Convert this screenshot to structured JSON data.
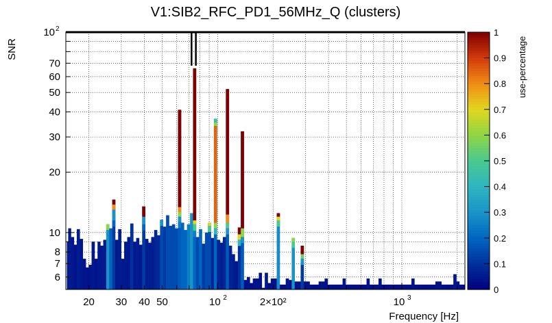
{
  "chart_data": {
    "type": "heatmap",
    "title": "V1:SIB2_RFC_PD1_56MHz_Q (clusters)",
    "xlabel": "Frequency [Hz]",
    "ylabel": "SNR",
    "zlabel": "use-percentage",
    "x_scale": "log",
    "y_scale": "log",
    "xlim": [
      15,
      2200
    ],
    "ylim": [
      5.2,
      100
    ],
    "zlim": [
      0,
      1
    ],
    "grid": true,
    "x_tick_labels": [
      {
        "value": 20,
        "label": "20"
      },
      {
        "value": 30,
        "label": "30"
      },
      {
        "value": 40,
        "label": "40"
      },
      {
        "value": 50,
        "label": "50"
      },
      {
        "value": 200,
        "label": "2×10²"
      }
    ],
    "x_decade_labels": [
      {
        "value": 100,
        "base": "10",
        "exp": "2"
      },
      {
        "value": 1000,
        "base": "10",
        "exp": "3"
      }
    ],
    "y_tick_labels": [
      {
        "value": 6,
        "label": "6"
      },
      {
        "value": 7,
        "label": "7"
      },
      {
        "value": 8,
        "label": "8"
      },
      {
        "value": 10,
        "label": "10"
      },
      {
        "value": 20,
        "label": "20"
      },
      {
        "value": 30,
        "label": "30"
      },
      {
        "value": 40,
        "label": "40"
      },
      {
        "value": 50,
        "label": "50"
      },
      {
        "value": 60,
        "label": "60"
      },
      {
        "value": 70,
        "label": "70"
      }
    ],
    "y_decade_labels": [
      {
        "value": 100,
        "base": "10",
        "exp": "2"
      }
    ],
    "z_tick_labels": [
      "0",
      "0.1",
      "0.2",
      "0.3",
      "0.4",
      "0.5",
      "0.6",
      "0.7",
      "0.8",
      "0.9",
      "1"
    ],
    "colormap": [
      "#00007f",
      "#00309c",
      "#0066c2",
      "#1a93c8",
      "#2fb5c0",
      "#49c98f",
      "#8fd544",
      "#e0d71f",
      "#f08d14",
      "#d23b0b",
      "#7f0000"
    ],
    "columns": [
      {
        "f": 15.2,
        "snr": 9.0,
        "z": 0.05
      },
      {
        "f": 15.7,
        "snr": 10.5,
        "z": 0.06
      },
      {
        "f": 16.3,
        "snr": 9.5,
        "z": 0.05
      },
      {
        "f": 16.9,
        "snr": 8.7,
        "z": 0.04
      },
      {
        "f": 17.5,
        "snr": 10.4,
        "z": 0.06
      },
      {
        "f": 18.2,
        "snr": 9.3,
        "z": 0.05
      },
      {
        "f": 18.9,
        "snr": 7.4,
        "z": 0.04
      },
      {
        "f": 19.6,
        "snr": 6.7,
        "z": 0.04
      },
      {
        "f": 20.3,
        "snr": 6.9,
        "z": 0.04
      },
      {
        "f": 21.1,
        "snr": 9.0,
        "z": 0.05
      },
      {
        "f": 21.9,
        "snr": 7.4,
        "z": 0.04
      },
      {
        "f": 22.7,
        "snr": 9.0,
        "z": 0.05
      },
      {
        "f": 23.5,
        "snr": 8.6,
        "z": 0.05
      },
      {
        "f": 24.4,
        "snr": 9.2,
        "z": 0.05
      },
      {
        "f": 25.3,
        "snr": 11.0,
        "z": 0.3,
        "cells": [
          [
            10.3,
            0.3
          ],
          [
            11.0,
            0.6
          ]
        ]
      },
      {
        "f": 26.3,
        "snr": 10.5,
        "z": 0.2
      },
      {
        "f": 27.3,
        "snr": 14.6,
        "z": 0.12,
        "cells": [
          [
            11.5,
            0.2
          ],
          [
            13.0,
            0.3
          ],
          [
            13.8,
            0.8
          ],
          [
            14.6,
            1.0
          ]
        ]
      },
      {
        "f": 28.3,
        "snr": 9.2,
        "z": 0.05
      },
      {
        "f": 29.4,
        "snr": 10.4,
        "z": 0.06
      },
      {
        "f": 30.5,
        "snr": 7.4,
        "z": 0.05
      },
      {
        "f": 31.7,
        "snr": 9.0,
        "z": 0.05
      },
      {
        "f": 32.9,
        "snr": 9.5,
        "z": 0.05
      },
      {
        "f": 34.2,
        "snr": 11.1,
        "z": 0.1
      },
      {
        "f": 35.5,
        "snr": 9.0,
        "z": 0.05
      },
      {
        "f": 36.8,
        "snr": 9.4,
        "z": 0.06
      },
      {
        "f": 38.2,
        "snr": 8.7,
        "z": 0.05
      },
      {
        "f": 39.7,
        "snr": 13.5,
        "z": 0.12,
        "cells": [
          [
            11.0,
            0.2
          ],
          [
            12.0,
            0.3
          ],
          [
            13.5,
            1.0
          ]
        ]
      },
      {
        "f": 41.2,
        "snr": 9.3,
        "z": 0.06
      },
      {
        "f": 42.8,
        "snr": 8.9,
        "z": 0.06
      },
      {
        "f": 44.4,
        "snr": 9.5,
        "z": 0.06
      },
      {
        "f": 46.1,
        "snr": 10.3,
        "z": 0.08
      },
      {
        "f": 47.8,
        "snr": 9.7,
        "z": 0.08
      },
      {
        "f": 49.6,
        "snr": 11.6,
        "z": 0.15,
        "cells": [
          [
            11.6,
            0.3
          ]
        ]
      },
      {
        "f": 51.5,
        "snr": 10.7,
        "z": 0.12
      },
      {
        "f": 53.5,
        "snr": 12.2,
        "z": 0.15
      },
      {
        "f": 55.5,
        "snr": 10.8,
        "z": 0.15
      },
      {
        "f": 57.6,
        "snr": 11.0,
        "z": 0.15
      },
      {
        "f": 59.8,
        "snr": 10.5,
        "z": 0.15
      },
      {
        "f": 62.1,
        "snr": 41.0,
        "z": 0.18,
        "cells": [
          [
            11.3,
            0.25
          ],
          [
            12.0,
            0.3
          ],
          [
            12.7,
            0.6
          ],
          [
            13.4,
            0.8
          ],
          [
            41.0,
            1.0
          ]
        ]
      },
      {
        "f": 64.5,
        "snr": 11.2,
        "z": 0.2
      },
      {
        "f": 66.9,
        "snr": 10.3,
        "z": 0.2
      },
      {
        "f": 69.5,
        "snr": 11.0,
        "z": 0.25
      },
      {
        "f": 72.2,
        "snr": 12.5,
        "z": 0.3
      },
      {
        "f": 74.9,
        "snr": 66.0,
        "z": 0.2,
        "cells": [
          [
            10.2,
            0.25
          ],
          [
            11.0,
            0.5
          ],
          [
            11.5,
            0.7
          ],
          [
            66.0,
            1.0
          ]
        ]
      },
      {
        "f": 77.8,
        "snr": 9.5,
        "z": 0.15
      },
      {
        "f": 80.7,
        "snr": 10.4,
        "z": 0.2
      },
      {
        "f": 83.8,
        "snr": 8.8,
        "z": 0.12
      },
      {
        "f": 87.0,
        "snr": 10.0,
        "z": 0.15
      },
      {
        "f": 90.3,
        "snr": 11.2,
        "z": 0.15,
        "cells": [
          [
            10.8,
            0.5
          ],
          [
            11.2,
            0.7
          ]
        ]
      },
      {
        "f": 93.7,
        "snr": 9.4,
        "z": 0.08
      },
      {
        "f": 97.3,
        "snr": 37.0,
        "z": 0.2,
        "cells": [
          [
            10.5,
            0.4
          ],
          [
            11.2,
            0.6
          ],
          [
            34.0,
            0.85
          ],
          [
            35.5,
            0.6
          ],
          [
            37.0,
            0.45
          ]
        ]
      },
      {
        "f": 101.0,
        "snr": 9.2,
        "z": 0.08
      },
      {
        "f": 104.8,
        "snr": 8.9,
        "z": 0.06
      },
      {
        "f": 108.8,
        "snr": 9.5,
        "z": 0.08
      },
      {
        "f": 113.0,
        "snr": 52.0,
        "z": 0.18,
        "cells": [
          [
            10.5,
            0.3
          ],
          [
            11.2,
            0.5
          ],
          [
            12.3,
            0.8
          ],
          [
            52.0,
            1.0
          ]
        ]
      },
      {
        "f": 117.3,
        "snr": 8.6,
        "z": 0.07
      },
      {
        "f": 121.7,
        "snr": 7.8,
        "z": 0.06
      },
      {
        "f": 126.4,
        "snr": 7.2,
        "z": 0.05
      },
      {
        "f": 131.2,
        "snr": 10.6,
        "z": 0.1,
        "cells": [
          [
            9.2,
            0.4
          ],
          [
            9.8,
            0.7
          ],
          [
            10.6,
            1.0
          ]
        ]
      },
      {
        "f": 136.2,
        "snr": 32.0,
        "z": 0.18,
        "cells": [
          [
            9.5,
            0.3
          ],
          [
            10.5,
            0.6
          ],
          [
            32.0,
            1.0
          ]
        ]
      },
      {
        "f": 141.4,
        "snr": 5.8,
        "z": 0.04
      },
      {
        "f": 146.8,
        "snr": 6.0,
        "z": 0.04
      },
      {
        "f": 152.4,
        "snr": 5.6,
        "z": 0.03
      },
      {
        "f": 158.2,
        "snr": 5.9,
        "z": 0.04
      },
      {
        "f": 164.2,
        "snr": 5.9,
        "z": 0.04
      },
      {
        "f": 170.5,
        "snr": 6.3,
        "z": 0.04
      },
      {
        "f": 177.0,
        "snr": 5.3,
        "z": 0.03
      },
      {
        "f": 183.7,
        "snr": 6.3,
        "z": 0.05
      },
      {
        "f": 190.7,
        "snr": 5.6,
        "z": 0.03
      },
      {
        "f": 198.0,
        "snr": 5.9,
        "z": 0.04
      },
      {
        "f": 205.5,
        "snr": 5.9,
        "z": 0.04
      },
      {
        "f": 213.4,
        "snr": 12.5,
        "z": 0.28,
        "cells": [
          [
            11.5,
            0.5
          ],
          [
            12.0,
            0.7
          ],
          [
            12.5,
            1.0
          ]
        ]
      },
      {
        "f": 221.5,
        "snr": 5.5,
        "z": 0.03
      },
      {
        "f": 229.9,
        "snr": 5.5,
        "z": 0.03
      },
      {
        "f": 238.7,
        "snr": 5.9,
        "z": 0.04
      },
      {
        "f": 247.8,
        "snr": 5.8,
        "z": 0.04
      },
      {
        "f": 257.2,
        "snr": 9.4,
        "z": 0.3,
        "cells": [
          [
            9.0,
            0.5
          ],
          [
            9.4,
            0.6
          ]
        ]
      },
      {
        "f": 267.0,
        "snr": 5.7,
        "z": 0.04
      },
      {
        "f": 277.2,
        "snr": 5.7,
        "z": 0.04
      },
      {
        "f": 287.8,
        "snr": 8.6,
        "z": 0.12,
        "cells": [
          [
            7.4,
            0.3
          ],
          [
            7.8,
            0.55
          ],
          [
            8.6,
            1.0
          ]
        ]
      },
      {
        "f": 298.7,
        "snr": 5.7,
        "z": 0.04
      },
      {
        "f": 310.1,
        "snr": 5.7,
        "z": 0.04
      },
      {
        "f": 321.9,
        "snr": 5.5,
        "z": 0.03
      },
      {
        "f": 334.2,
        "snr": 5.5,
        "z": 0.03
      },
      {
        "f": 346.9,
        "snr": 5.5,
        "z": 0.03
      },
      {
        "f": 360.2,
        "snr": 5.7,
        "z": 0.04
      },
      {
        "f": 373.9,
        "snr": 5.7,
        "z": 0.04
      },
      {
        "f": 388.1,
        "snr": 5.9,
        "z": 0.04
      },
      {
        "f": 402.9,
        "snr": 5.5,
        "z": 0.03
      },
      {
        "f": 418.3,
        "snr": 5.5,
        "z": 0.03
      },
      {
        "f": 434.2,
        "snr": 5.5,
        "z": 0.03
      },
      {
        "f": 450.8,
        "snr": 5.5,
        "z": 0.03
      },
      {
        "f": 468.0,
        "snr": 5.5,
        "z": 0.03
      },
      {
        "f": 485.8,
        "snr": 5.9,
        "z": 0.04
      },
      {
        "f": 504.3,
        "snr": 5.5,
        "z": 0.03
      },
      {
        "f": 523.6,
        "snr": 5.5,
        "z": 0.03
      },
      {
        "f": 543.5,
        "snr": 5.5,
        "z": 0.03
      },
      {
        "f": 564.3,
        "snr": 5.5,
        "z": 0.03
      },
      {
        "f": 585.8,
        "snr": 5.5,
        "z": 0.03
      },
      {
        "f": 608.1,
        "snr": 5.5,
        "z": 0.03
      },
      {
        "f": 631.3,
        "snr": 5.5,
        "z": 0.03
      },
      {
        "f": 655.4,
        "snr": 5.9,
        "z": 0.04
      },
      {
        "f": 680.4,
        "snr": 5.5,
        "z": 0.03
      },
      {
        "f": 706.3,
        "snr": 5.5,
        "z": 0.03
      },
      {
        "f": 733.2,
        "snr": 5.5,
        "z": 0.03
      },
      {
        "f": 761.2,
        "snr": 5.9,
        "z": 0.04
      },
      {
        "f": 790.2,
        "snr": 5.5,
        "z": 0.03
      },
      {
        "f": 820.3,
        "snr": 5.5,
        "z": 0.03
      },
      {
        "f": 851.6,
        "snr": 5.5,
        "z": 0.03
      },
      {
        "f": 884.1,
        "snr": 5.5,
        "z": 0.03
      },
      {
        "f": 917.8,
        "snr": 5.5,
        "z": 0.03
      },
      {
        "f": 952.8,
        "snr": 5.5,
        "z": 0.03
      },
      {
        "f": 989.1,
        "snr": 5.5,
        "z": 0.03
      },
      {
        "f": 1026.8,
        "snr": 5.5,
        "z": 0.03
      },
      {
        "f": 1066.0,
        "snr": 5.5,
        "z": 0.03
      },
      {
        "f": 1106.6,
        "snr": 5.5,
        "z": 0.03
      },
      {
        "f": 1148.8,
        "snr": 5.9,
        "z": 0.04
      },
      {
        "f": 1192.6,
        "snr": 5.5,
        "z": 0.03
      },
      {
        "f": 1238.1,
        "snr": 5.5,
        "z": 0.03
      },
      {
        "f": 1285.3,
        "snr": 5.5,
        "z": 0.03
      },
      {
        "f": 1334.3,
        "snr": 5.5,
        "z": 0.03
      },
      {
        "f": 1385.2,
        "snr": 5.5,
        "z": 0.03
      },
      {
        "f": 1438.0,
        "snr": 5.5,
        "z": 0.03
      },
      {
        "f": 1492.8,
        "snr": 5.5,
        "z": 0.03
      },
      {
        "f": 1549.7,
        "snr": 5.7,
        "z": 0.04
      },
      {
        "f": 1608.8,
        "snr": 5.7,
        "z": 0.04
      },
      {
        "f": 1670.1,
        "snr": 5.5,
        "z": 0.03
      },
      {
        "f": 1733.8,
        "snr": 5.5,
        "z": 0.03
      },
      {
        "f": 1799.9,
        "snr": 5.5,
        "z": 0.03
      },
      {
        "f": 1868.5,
        "snr": 5.5,
        "z": 0.03
      },
      {
        "f": 1939.7,
        "snr": 6.2,
        "z": 0.05
      },
      {
        "f": 2013.7,
        "snr": 5.7,
        "z": 0.04
      },
      {
        "f": 2090.5,
        "snr": 5.5,
        "z": 0.03
      },
      {
        "f": 2170.2,
        "snr": 5.5,
        "z": 0.03
      }
    ],
    "marker": {
      "f_low": 72.2,
      "f_high": 74.9,
      "snr_low": 68.0,
      "snr_high": 100
    }
  }
}
